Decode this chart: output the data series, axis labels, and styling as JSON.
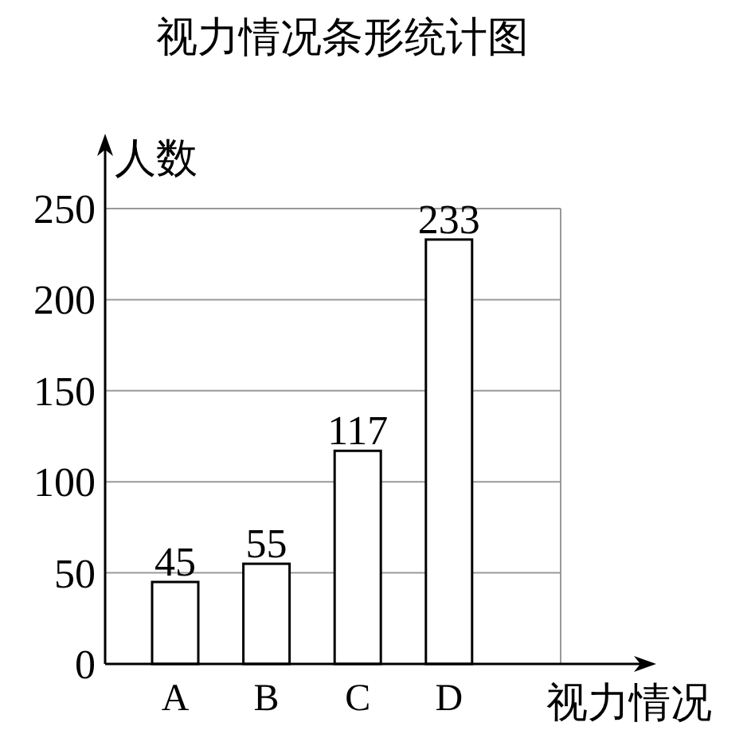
{
  "chart_data": {
    "type": "bar",
    "title": "视力情况条形统计图",
    "xlabel": "视力情况",
    "ylabel": "人数",
    "categories": [
      "A",
      "B",
      "C",
      "D"
    ],
    "values": [
      45,
      55,
      117,
      233
    ],
    "color": "#ffffff",
    "ylim": [
      0,
      250
    ],
    "yticks": [
      0,
      50,
      100,
      150,
      200,
      250
    ],
    "grid": "y",
    "data_labels": true
  }
}
